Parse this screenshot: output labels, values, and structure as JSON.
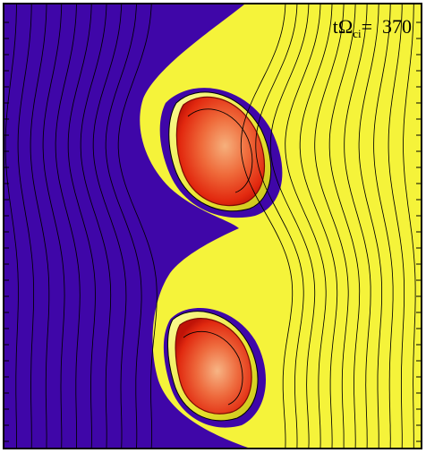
{
  "figure": {
    "time_label": {
      "prefix": "t",
      "omega": "Ω",
      "subscript": "ci",
      "equals": "=",
      "value": "370"
    },
    "colors": {
      "background_fluid": "#3f06a8",
      "outer_fluid": "#f5f33a",
      "vortex_core": "#e63b14",
      "vortex_core_light": "#f4a46a",
      "contour_lines": "#000000"
    },
    "visual": {
      "type": "field-contour-snapshot",
      "vortex_count": 2
    }
  }
}
